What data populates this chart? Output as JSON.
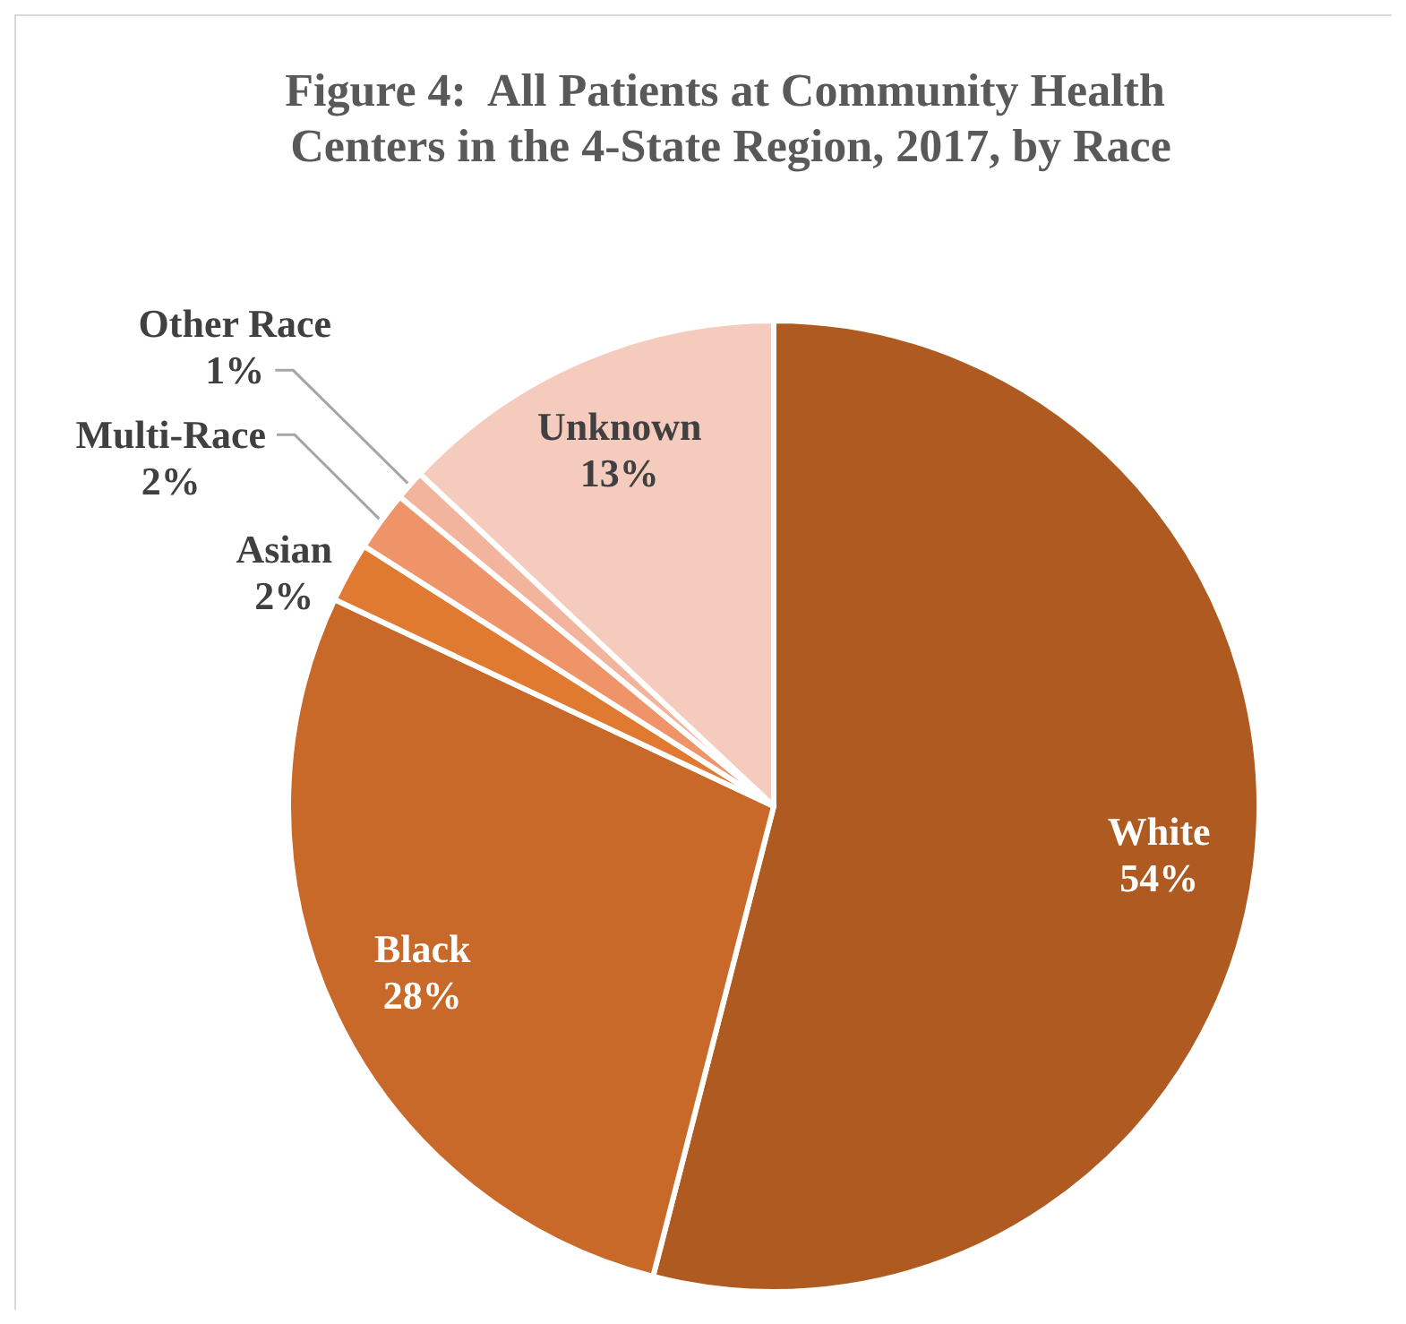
{
  "chart_data": {
    "type": "pie",
    "title": "Figure 4:  All Patients at Community Health Centers in the 4-State Region, 2017, by Race",
    "categories": [
      "White",
      "Black",
      "Asian",
      "Multi-Race",
      "Other Race",
      "Unknown"
    ],
    "values": [
      54,
      28,
      2,
      2,
      1,
      13
    ],
    "colors": [
      "#ae5a21",
      "#c8692a",
      "#e07a30",
      "#ee9468",
      "#f2b49c",
      "#f5cbbe"
    ],
    "value_labels": [
      "54%",
      "28%",
      "2%",
      "2%",
      "1%",
      "13%"
    ]
  }
}
